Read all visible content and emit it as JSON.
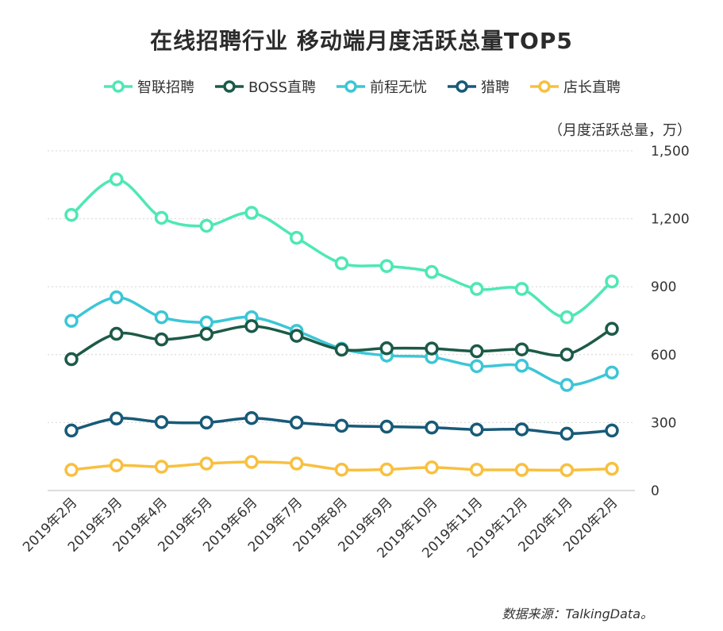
{
  "title": "在线招聘行业  移动端月度活跃总量TOP5",
  "unit_label": "（月度活跃总量，万）",
  "source": "数据来源：TalkingData。",
  "chart_data": {
    "type": "line",
    "title": "在线招聘行业  移动端月度活跃总量TOP5",
    "ylabel": "（月度活跃总量，万）",
    "ylim": [
      0,
      1500
    ],
    "yticks": [
      0,
      300,
      600,
      900,
      1200,
      1500
    ],
    "ytick_labels": [
      "0",
      "300",
      "600",
      "900",
      "1,200",
      "1,500"
    ],
    "grid": true,
    "y_axis_side": "right",
    "legend_position": "top",
    "categories": [
      "2019年2月",
      "2019年3月",
      "2019年4月",
      "2019年5月",
      "2019年6月",
      "2019年7月",
      "2019年8月",
      "2019年9月",
      "2019年10月",
      "2019年11月",
      "2019年12月",
      "2020年1月",
      "2020年2月"
    ],
    "series": [
      {
        "name": "智联招聘",
        "color": "#4ee8b5",
        "values": [
          1217,
          1374,
          1204,
          1169,
          1226,
          1116,
          1003,
          991,
          965,
          890,
          890,
          765,
          923
        ]
      },
      {
        "name": "BOSS直聘",
        "color": "#1c5a48",
        "values": [
          580,
          692,
          667,
          691,
          726,
          683,
          622,
          628,
          627,
          615,
          623,
          600,
          714
        ]
      },
      {
        "name": "前程无忧",
        "color": "#3cc6d6",
        "values": [
          749,
          853,
          765,
          742,
          765,
          705,
          626,
          596,
          589,
          549,
          551,
          466,
          521
        ]
      },
      {
        "name": "猎聘",
        "color": "#185a78",
        "values": [
          265,
          318,
          302,
          300,
          320,
          300,
          286,
          282,
          278,
          269,
          270,
          251,
          265
        ]
      },
      {
        "name": "店长直聘",
        "color": "#f8c040",
        "values": [
          91,
          111,
          105,
          119,
          126,
          119,
          92,
          93,
          102,
          92,
          91,
          90,
          96
        ]
      }
    ]
  }
}
